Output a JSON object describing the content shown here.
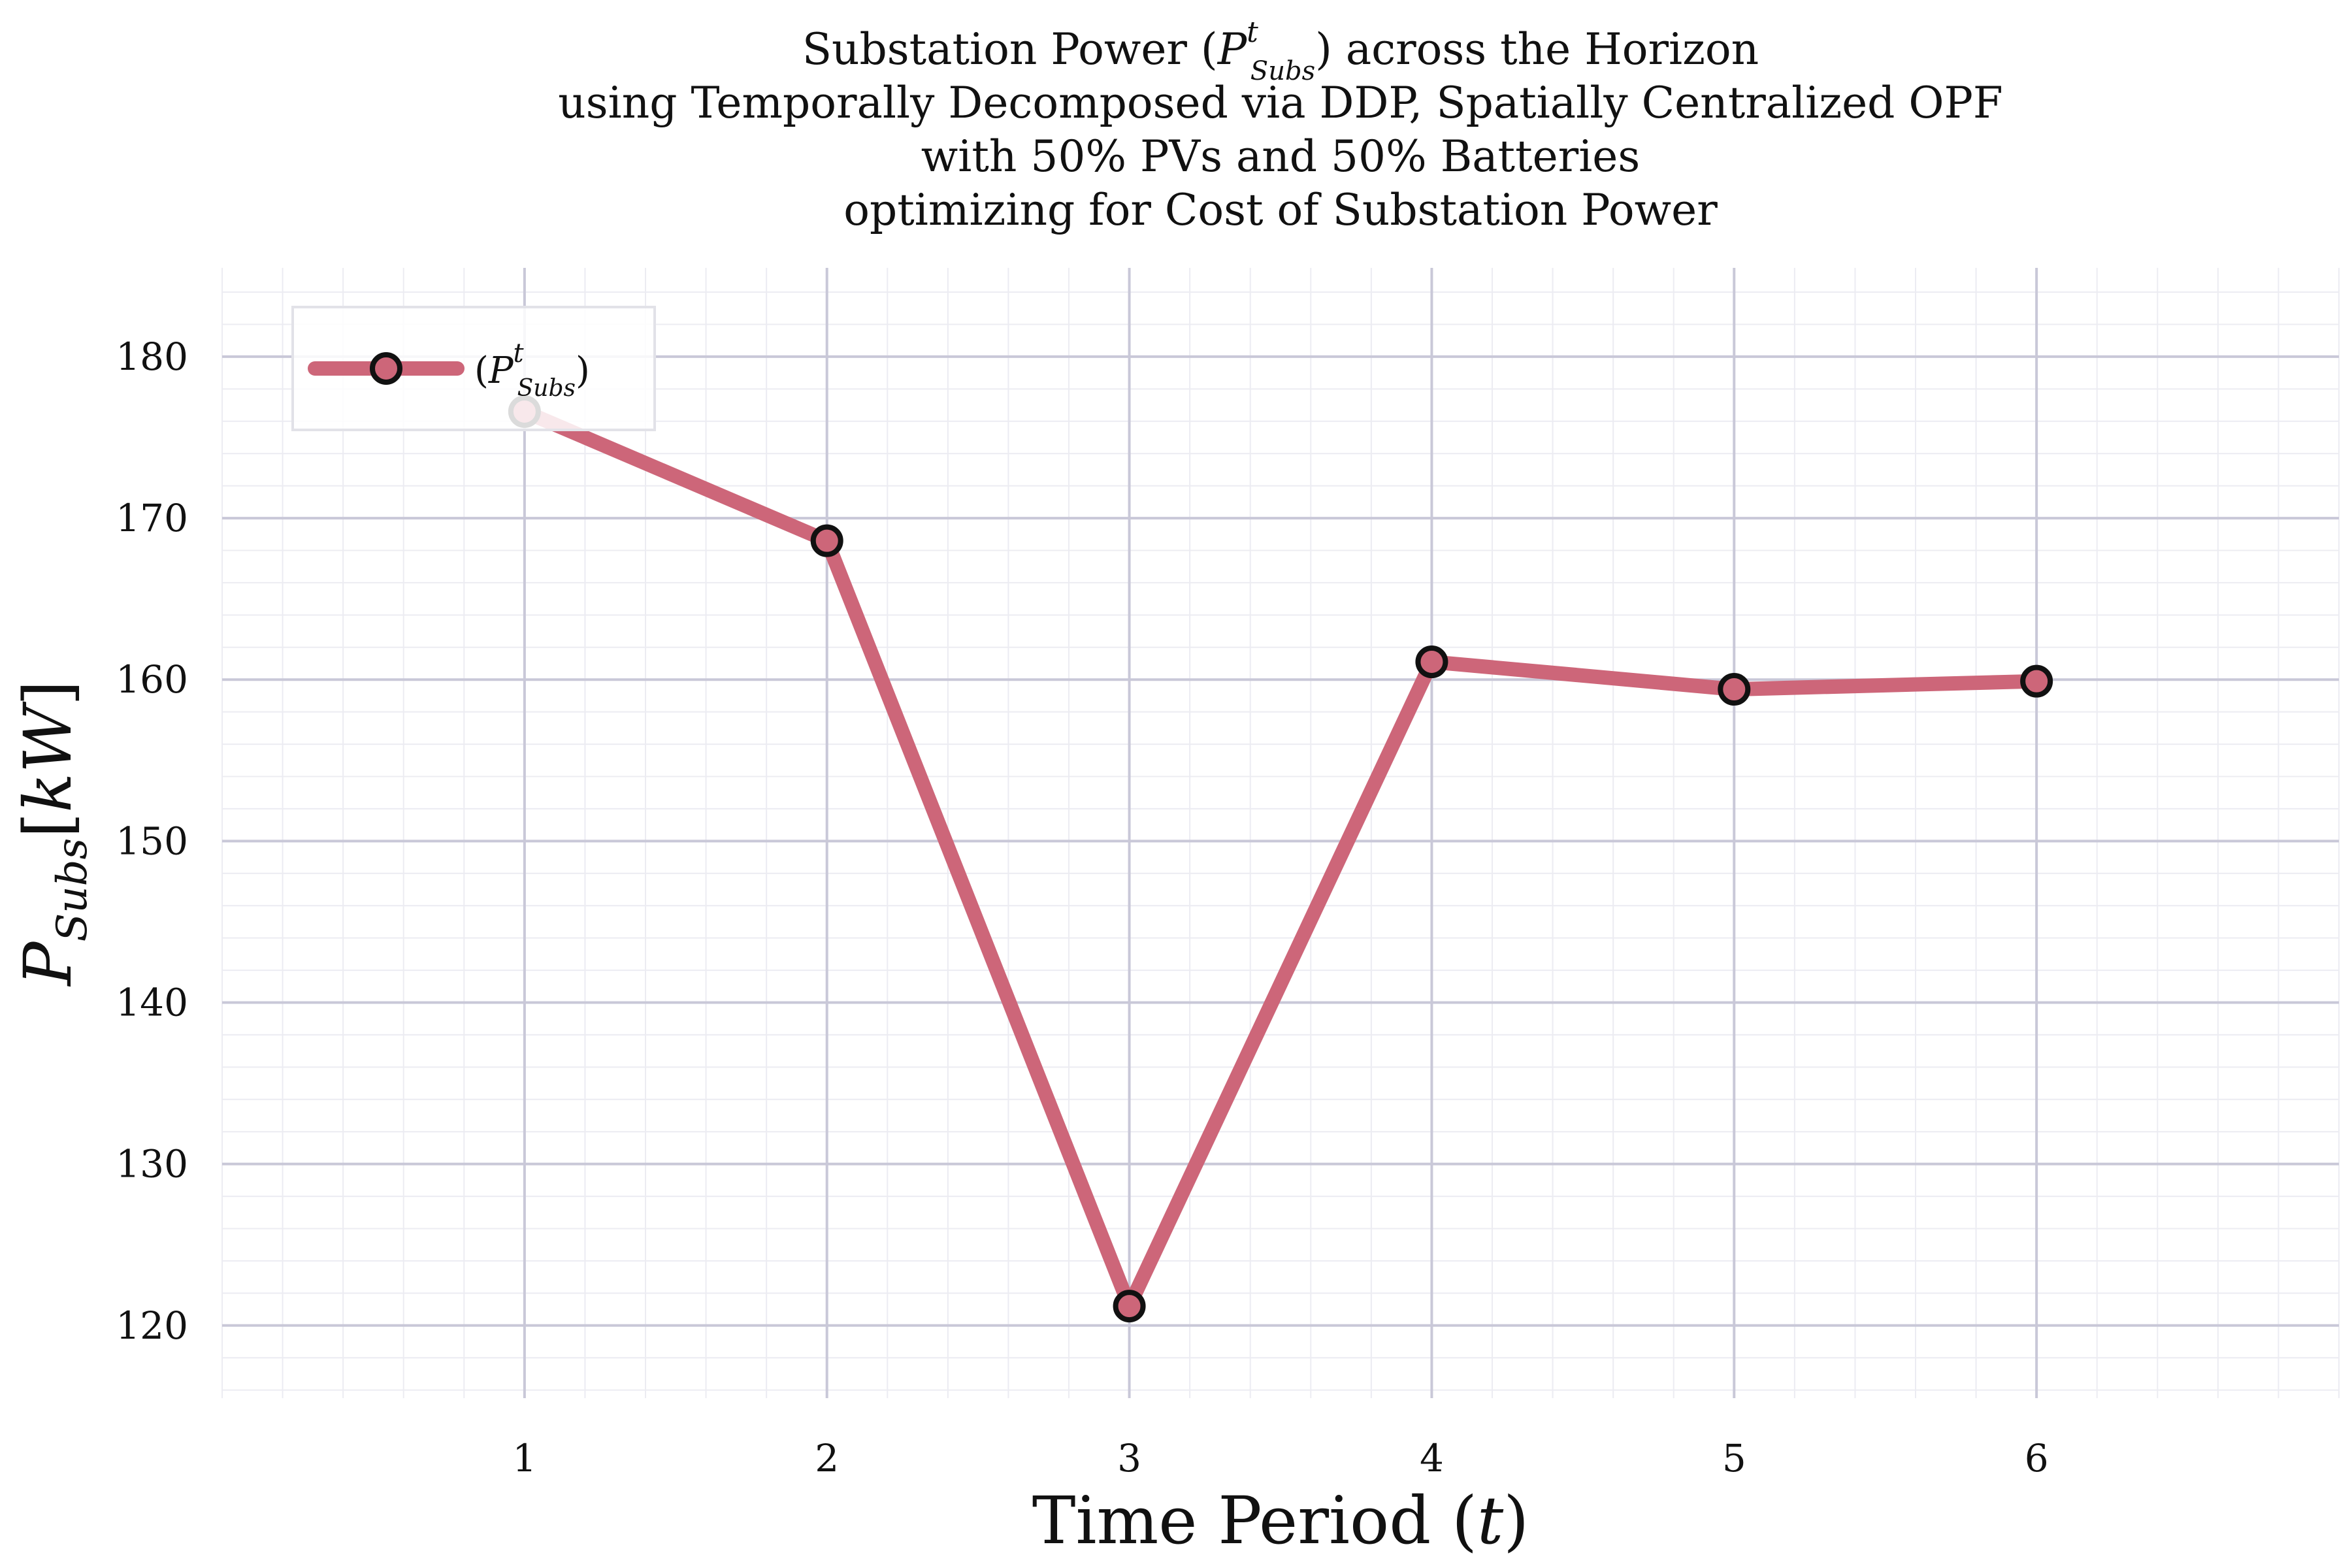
{
  "chart_data": {
    "type": "line",
    "title_lines": [
      "Substation Power (P^t_Subs) across the Horizon",
      "using Temporally Decomposed via DDP, Spatially Centralized OPF",
      "with 50% PVs and 50% Batteries",
      "optimizing for Cost of Substation Power"
    ],
    "xlabel": "Time Period (t)",
    "ylabel": "P_Subs[kW]",
    "x": [
      1,
      2,
      3,
      4,
      5,
      6
    ],
    "xticks": [
      "1",
      "2",
      "3",
      "4",
      "5",
      "6"
    ],
    "yticks": [
      "120",
      "130",
      "140",
      "150",
      "160",
      "170",
      "180"
    ],
    "xlim": [
      0,
      7
    ],
    "ylim": [
      115.5,
      185.5
    ],
    "grid": true,
    "legend_position": "top-left",
    "series": [
      {
        "name": "(P^t_Subs)",
        "values": [
          176.6,
          168.6,
          121.2,
          161.1,
          159.4,
          159.9
        ],
        "line_color": "#cd6679",
        "marker_fill": "#cd6679",
        "marker_edge": "#111111"
      }
    ]
  }
}
